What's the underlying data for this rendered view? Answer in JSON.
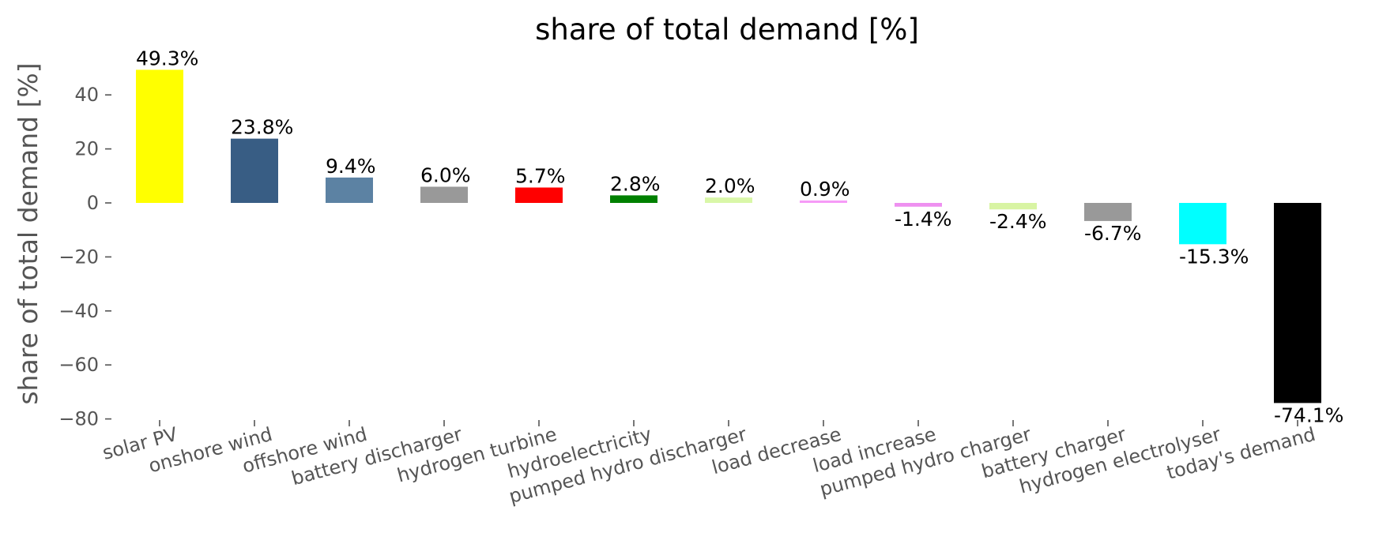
{
  "chart_data": {
    "type": "bar",
    "title": "share of total demand [%]",
    "ylabel": "share of total demand [%]",
    "xlabel": "",
    "ylim": [
      -82,
      55
    ],
    "yticks": [
      -80,
      -60,
      -40,
      -20,
      0,
      20,
      40
    ],
    "grid": false,
    "categories": [
      "solar PV",
      "onshore wind",
      "offshore wind",
      "battery discharger",
      "hydrogen turbine",
      "hydroelectricity",
      "pumped hydro discharger",
      "load decrease",
      "load increase",
      "pumped hydro charger",
      "battery charger",
      "hydrogen electrolyser",
      "today's demand"
    ],
    "values": [
      49.3,
      23.8,
      9.4,
      6.0,
      5.7,
      2.8,
      2.0,
      0.9,
      -1.4,
      -2.4,
      -6.7,
      -15.3,
      -74.1
    ],
    "value_labels": [
      "49.3%",
      "23.8%",
      "9.4%",
      "6.0%",
      "5.7%",
      "2.8%",
      "2.0%",
      "0.9%",
      "-1.4%",
      "-2.4%",
      "-6.7%",
      "-15.3%",
      "-74.1%"
    ],
    "colors": [
      "#ffff00",
      "#385d84",
      "#5c82a3",
      "#999999",
      "#ff0000",
      "#008000",
      "#d9f7a8",
      "#f69bf7",
      "#ee90f0",
      "#d8f4a3",
      "#999999",
      "#00ffff",
      "#000000"
    ]
  }
}
